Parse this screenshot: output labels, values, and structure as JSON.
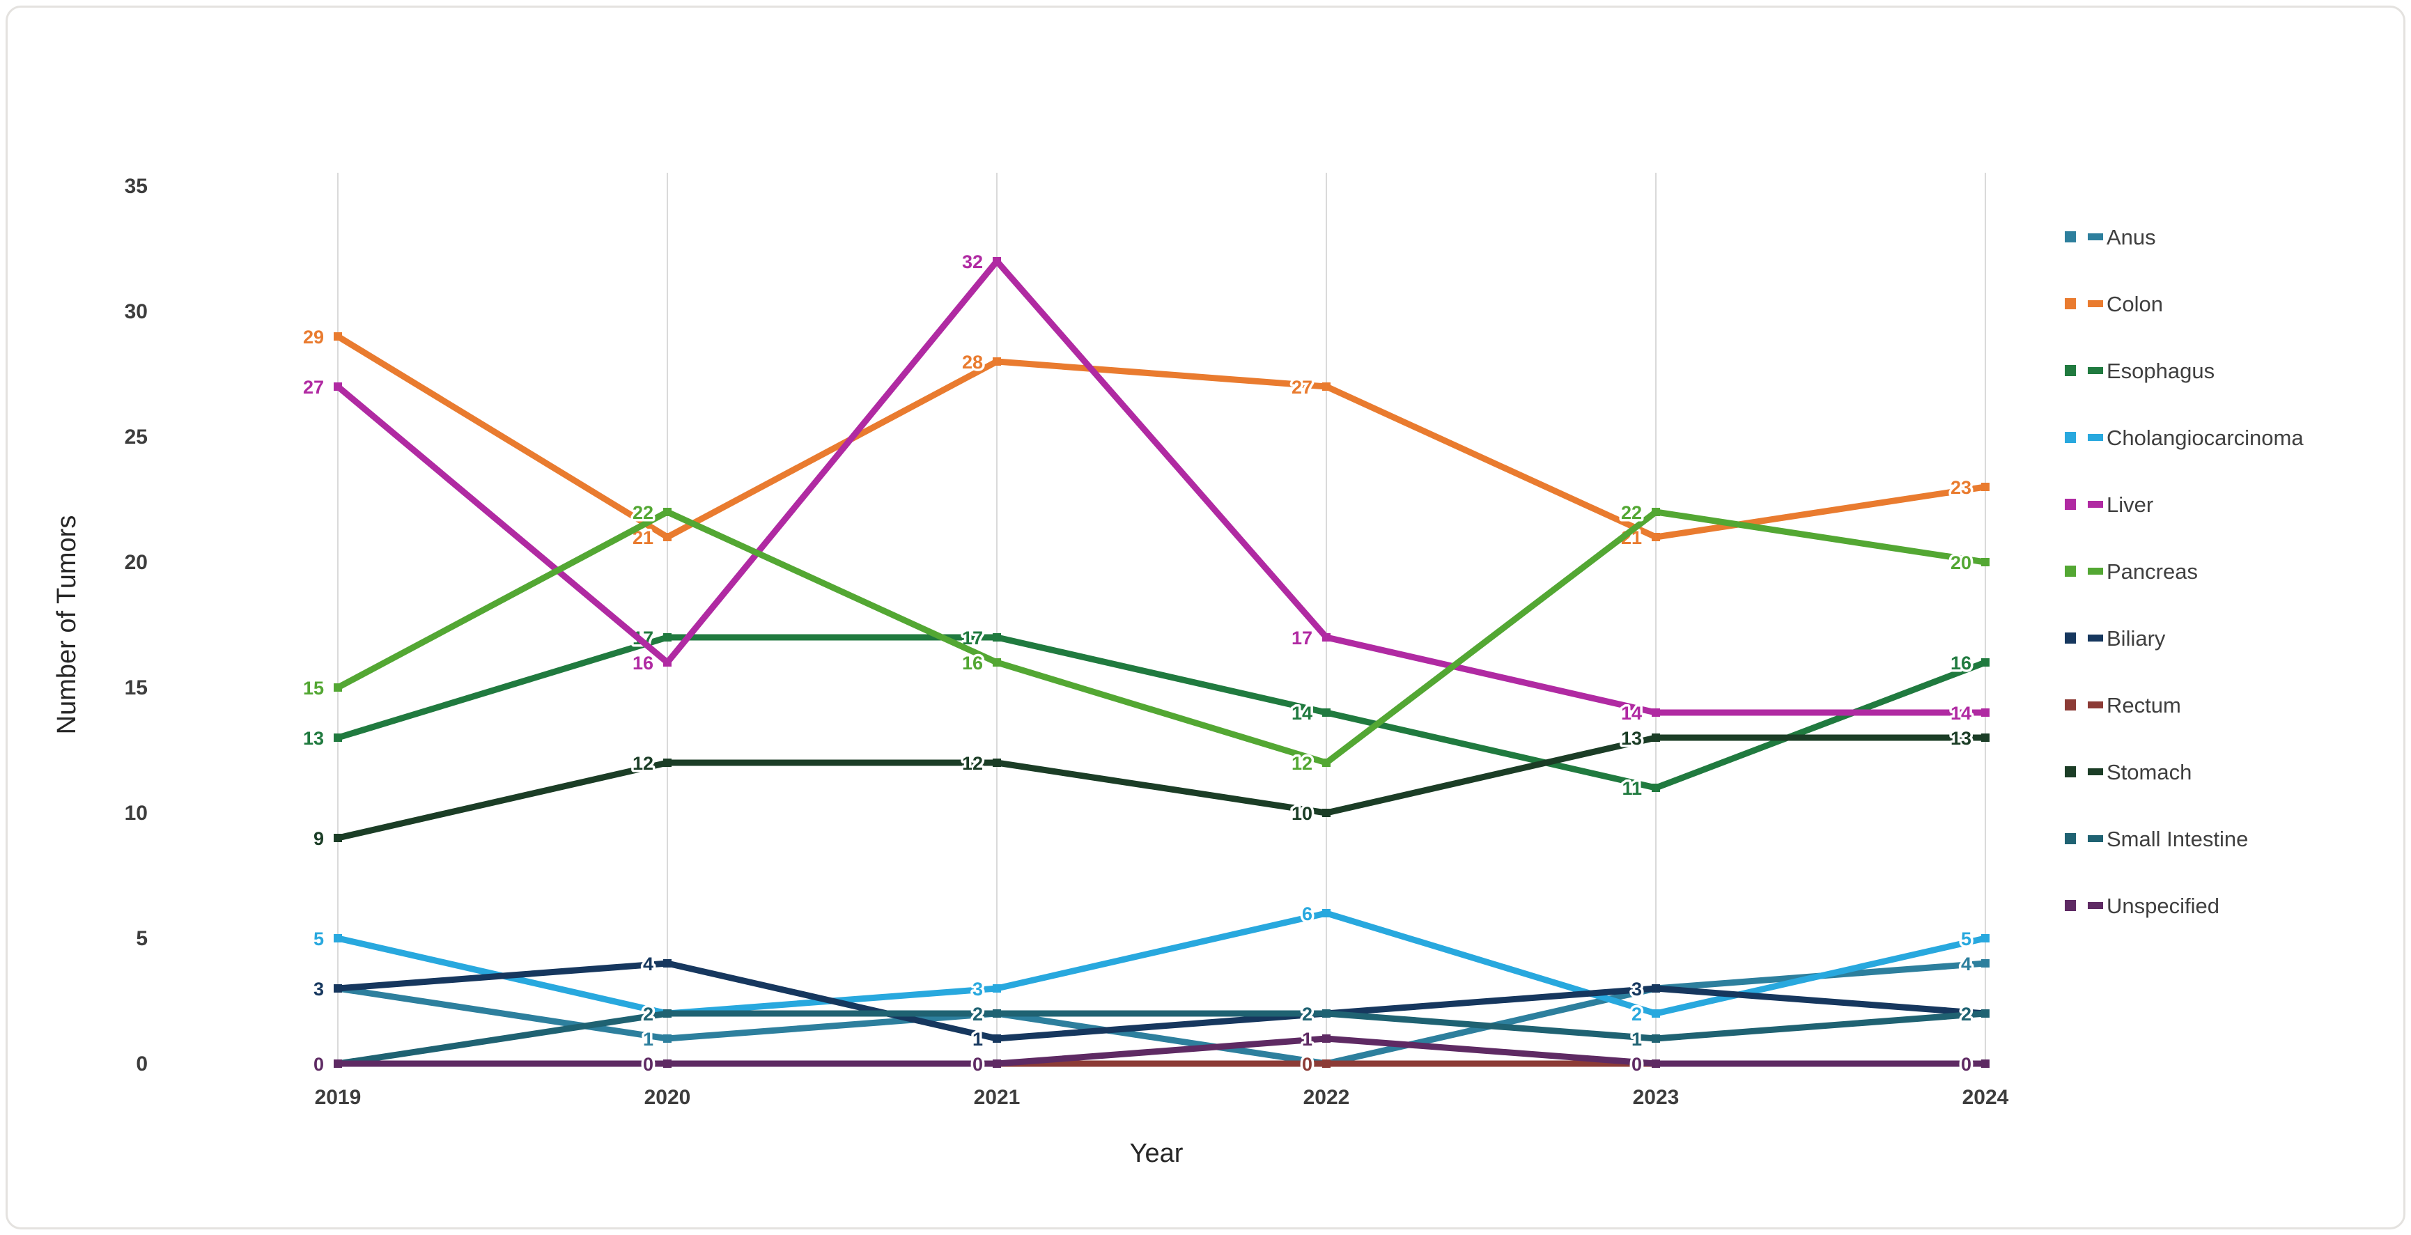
{
  "chart": {
    "y_axis_title": "Number of Tumors",
    "x_axis_title": "Year",
    "background_color": "#FFFFFF",
    "grid_color": "#DADADA",
    "tick_text_color": "#3D3D3D"
  },
  "chart_data": {
    "type": "line",
    "title": "",
    "xlabel": "Year",
    "ylabel": "Number of Tumors",
    "categories": [
      "2019",
      "2020",
      "2021",
      "2022",
      "2023",
      "2024"
    ],
    "ylim": [
      0,
      35
    ],
    "y_ticks": [
      0,
      5,
      10,
      15,
      20,
      25,
      30,
      35
    ],
    "grid": "vertical-only",
    "legend_position": "right",
    "data_labels": "shown, colored per series, left of each point",
    "series": [
      {
        "name": "Anus",
        "color": "#2D7F9D",
        "values": [
          3,
          1,
          2,
          0,
          3,
          4
        ]
      },
      {
        "name": "Colon",
        "color": "#E97B2F",
        "values": [
          29,
          21,
          28,
          27,
          21,
          23
        ]
      },
      {
        "name": "Esophagus",
        "color": "#207A3F",
        "values": [
          13,
          17,
          17,
          14,
          11,
          16
        ]
      },
      {
        "name": "Cholangiocarcinoma",
        "color": "#28A8DE",
        "values": [
          5,
          2,
          3,
          6,
          2,
          5
        ]
      },
      {
        "name": "Liver",
        "color": "#B02AA2",
        "values": [
          27,
          16,
          32,
          17,
          14,
          14
        ]
      },
      {
        "name": "Pancreas",
        "color": "#53A733",
        "values": [
          15,
          22,
          16,
          12,
          22,
          20
        ]
      },
      {
        "name": "Biliary",
        "color": "#16375E",
        "values": [
          3,
          4,
          1,
          2,
          3,
          2
        ]
      },
      {
        "name": "Rectum",
        "color": "#8C3B36",
        "values": [
          0,
          0,
          0,
          0,
          0,
          0
        ]
      },
      {
        "name": "Stomach",
        "color": "#1B3D26",
        "values": [
          9,
          12,
          12,
          10,
          13,
          13
        ]
      },
      {
        "name": "Small Intestine",
        "color": "#1F6272",
        "values": [
          0,
          2,
          2,
          2,
          1,
          2
        ]
      },
      {
        "name": "Unspecified",
        "color": "#5E2A63",
        "values": [
          0,
          0,
          0,
          1,
          0,
          0
        ]
      }
    ]
  }
}
